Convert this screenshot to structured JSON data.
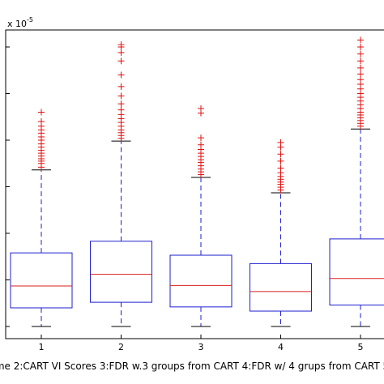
{
  "chart_data": {
    "type": "box",
    "title": "",
    "exponent_label": "x 10",
    "exponent_power": "-5",
    "xlabel": "me 2:CART VI Scores 3:FDR w.3 groups from CART 4:FDR w/ 4 grups from CART 5",
    "ylabel": "",
    "categories": [
      "1",
      "2",
      "3",
      "4",
      "5"
    ],
    "ylim": [
      0,
      6.2
    ],
    "yticks": [
      0,
      1,
      2,
      3,
      4,
      5,
      6
    ],
    "grid": false,
    "colors": {
      "box": "#1f1fcf",
      "median": "#d81f1f",
      "whisker": "#1f1fcf",
      "cap": "#000000",
      "outlier": "#e01010"
    },
    "boxes": [
      {
        "label": "1",
        "whisker_low": 0.0,
        "q1": 0.4,
        "median": 0.87,
        "q3": 1.58,
        "whisker_high": 3.36,
        "outliers": [
          3.42,
          3.5,
          3.55,
          3.6,
          3.66,
          3.72,
          3.78,
          3.85,
          3.92,
          4.0,
          4.07,
          4.15,
          4.22,
          4.3,
          4.4,
          4.6
        ]
      },
      {
        "label": "2",
        "whisker_low": 0.0,
        "q1": 0.52,
        "median": 1.12,
        "q3": 1.83,
        "whisker_high": 3.98,
        "outliers": [
          4.04,
          4.1,
          4.16,
          4.22,
          4.3,
          4.38,
          4.46,
          4.55,
          4.65,
          4.78,
          4.95,
          5.15,
          5.4,
          5.7,
          5.88,
          6.0,
          6.05
        ]
      },
      {
        "label": "3",
        "whisker_low": 0.0,
        "q1": 0.42,
        "median": 0.88,
        "q3": 1.53,
        "whisker_high": 3.2,
        "outliers": [
          3.26,
          3.32,
          3.38,
          3.45,
          3.52,
          3.58,
          3.65,
          3.72,
          3.8,
          3.9,
          4.05,
          4.58,
          4.68
        ]
      },
      {
        "label": "4",
        "whisker_low": 0.0,
        "q1": 0.33,
        "median": 0.75,
        "q3": 1.35,
        "whisker_high": 2.87,
        "outliers": [
          2.93,
          2.99,
          3.05,
          3.1,
          3.16,
          3.22,
          3.3,
          3.4,
          3.55,
          3.7,
          3.85,
          3.95
        ]
      },
      {
        "label": "5",
        "whisker_low": 0.0,
        "q1": 0.46,
        "median": 1.03,
        "q3": 1.88,
        "whisker_high": 4.24,
        "outliers": [
          4.3,
          4.36,
          4.42,
          4.48,
          4.54,
          4.6,
          4.68,
          4.76,
          4.84,
          4.92,
          5.0,
          5.1,
          5.2,
          5.3,
          5.42,
          5.55,
          5.7,
          5.85,
          6.0,
          6.15
        ]
      }
    ]
  }
}
